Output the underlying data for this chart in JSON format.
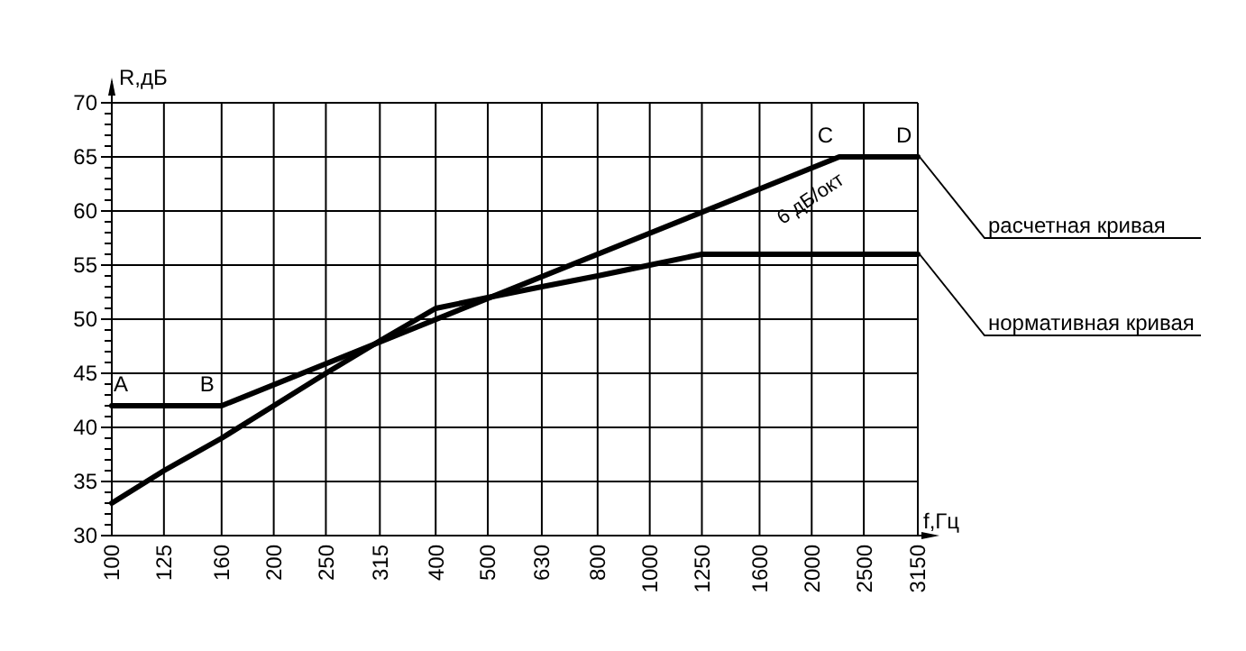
{
  "chart_data": {
    "type": "line",
    "xlabel": "f,Гц",
    "ylabel": "R,дБ",
    "log": "x",
    "xlim": [
      100,
      3150
    ],
    "xticks": [
      100,
      125,
      160,
      200,
      250,
      315,
      400,
      500,
      630,
      800,
      1000,
      1250,
      1600,
      2000,
      2500,
      3150
    ],
    "ylim": [
      30,
      70
    ],
    "yticks": [
      30,
      {
        "value": 31,
        "label": null
      },
      {
        "value": 32,
        "label": null
      },
      {
        "value": 33,
        "label": null
      },
      {
        "value": 34,
        "label": null
      },
      35,
      {
        "value": 36,
        "label": null
      },
      {
        "value": 37,
        "label": null
      },
      {
        "value": 38,
        "label": null
      },
      {
        "value": 39,
        "label": null
      },
      40,
      {
        "value": 41,
        "label": null
      },
      {
        "value": 42,
        "label": null
      },
      {
        "value": 43,
        "label": null
      },
      {
        "value": 44,
        "label": null
      },
      45,
      {
        "value": 46,
        "label": null
      },
      {
        "value": 47,
        "label": null
      },
      {
        "value": 48,
        "label": null
      },
      {
        "value": 49,
        "label": null
      },
      50,
      {
        "value": 51,
        "label": null
      },
      {
        "value": 52,
        "label": null
      },
      {
        "value": 53,
        "label": null
      },
      {
        "value": 54,
        "label": null
      },
      55,
      {
        "value": 56,
        "label": null
      },
      {
        "value": 57,
        "label": null
      },
      {
        "value": 58,
        "label": null
      },
      {
        "value": 59,
        "label": null
      },
      60,
      {
        "value": 61,
        "label": null
      },
      {
        "value": 62,
        "label": null
      },
      {
        "value": 63,
        "label": null
      },
      {
        "value": 64,
        "label": null
      },
      65,
      {
        "value": 66,
        "label": null
      },
      {
        "value": 67,
        "label": null
      },
      {
        "value": 68,
        "label": null
      },
      {
        "value": 69,
        "label": null
      },
      70
    ],
    "grid": true,
    "marker": "none",
    "line_style": "solid",
    "series": [
      {
        "name": "расчетная кривая",
        "color": "#000000",
        "x": [
          100,
          160,
          2250,
          3150
        ],
        "values": [
          42,
          42,
          65,
          65
        ]
      },
      {
        "name": "нормативная кривая",
        "color": "#000000",
        "x": [
          100,
          125,
          160,
          200,
          250,
          315,
          400,
          500,
          630,
          800,
          1000,
          1250,
          1600,
          2000,
          2500,
          3150
        ],
        "values": [
          33,
          36,
          39,
          42,
          45,
          48,
          51,
          52,
          53,
          54,
          55,
          56,
          56,
          56,
          56,
          56
        ]
      }
    ],
    "annotations": [
      {
        "text": "A",
        "x": 100,
        "y": 42
      },
      {
        "text": "B",
        "x": 160,
        "y": 42
      },
      {
        "text": "C",
        "x": 2250,
        "y": 65
      },
      {
        "text": "D",
        "x": 3150,
        "y": 65
      },
      "6 дБ/окт"
    ]
  }
}
